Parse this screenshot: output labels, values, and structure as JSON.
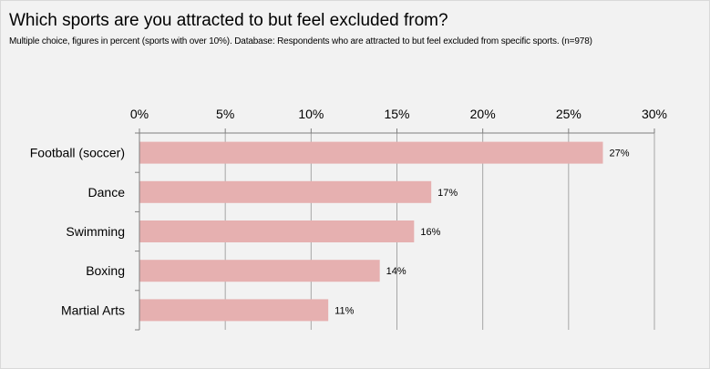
{
  "title": "Which sports are you attracted to but feel excluded from?",
  "subtitle": "Multiple choice, figures in percent (sports with over 10%). Database: Respondents who are attracted to but feel excluded from specific sports. (n=978)",
  "colors": {
    "bar": "#e6b0b0",
    "grid": "#a6a6a6",
    "axis": "#7f7f7f",
    "background": "#f2f2f2"
  },
  "chart_data": {
    "type": "bar",
    "orientation": "horizontal",
    "title": "Which sports are you attracted to but feel excluded from?",
    "subtitle": "Multiple choice, figures in percent (sports with over 10%). Database: Respondents who are attracted to but feel excluded from specific sports. (n=978)",
    "categories": [
      "Football (soccer)",
      "Dance",
      "Swimming",
      "Boxing",
      "Martial Arts"
    ],
    "values": [
      27,
      17,
      16,
      14,
      11
    ],
    "data_labels": [
      "27%",
      "17%",
      "16%",
      "14%",
      "11%"
    ],
    "xlim": [
      0,
      30
    ],
    "ticks": [
      0,
      5,
      10,
      15,
      20,
      25,
      30
    ],
    "tick_labels": [
      "0%",
      "5%",
      "10%",
      "15%",
      "20%",
      "25%",
      "30%"
    ],
    "axis_position": "top",
    "grid": true,
    "legend": "none"
  }
}
